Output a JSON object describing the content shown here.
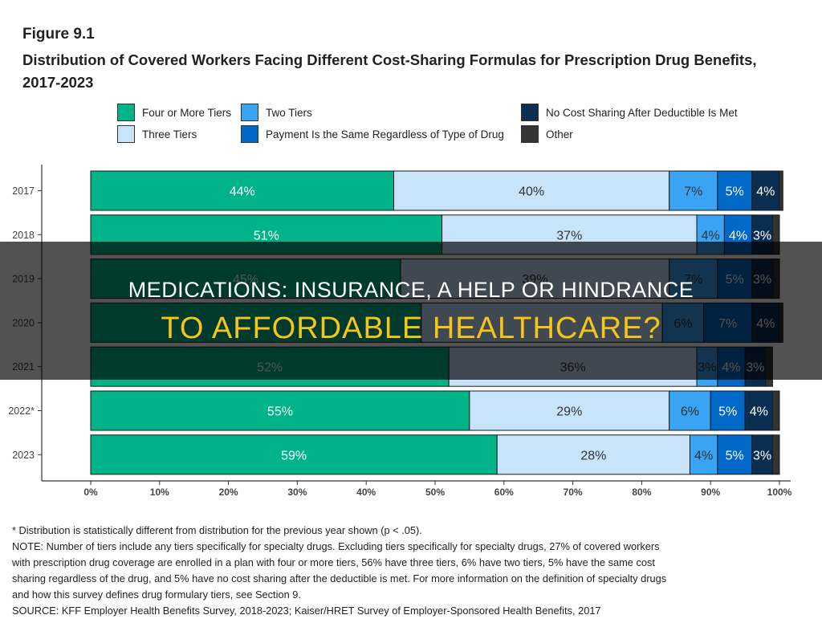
{
  "figure": {
    "number": "Figure 9.1",
    "title": "Distribution of Covered Workers Facing Different Cost-Sharing Formulas for Prescription Drug Benefits, 2017-2023"
  },
  "chart_data": {
    "type": "bar",
    "orientation": "horizontal",
    "stacked": true,
    "categories": [
      "2017",
      "2018",
      "2019",
      "2020",
      "2021",
      "2022*",
      "2023"
    ],
    "series": [
      {
        "name": "Four or More Tiers",
        "color": "#00b388",
        "label_color": "#ffffff",
        "values": [
          44,
          51,
          45,
          48,
          52,
          55,
          59
        ]
      },
      {
        "name": "Three Tiers",
        "color": "#c8e4fb",
        "label_color": "#333333",
        "values": [
          40,
          37,
          39,
          35,
          36,
          29,
          28
        ]
      },
      {
        "name": "Two Tiers",
        "color": "#39a3f4",
        "label_color": "#333333",
        "values": [
          7,
          4,
          7,
          6,
          3,
          6,
          4
        ]
      },
      {
        "name": "Payment Is the Same Regardless of Type of Drug",
        "color": "#0069c7",
        "label_color": "#ffffff",
        "values": [
          5,
          4,
          5,
          7,
          4,
          5,
          5
        ]
      },
      {
        "name": "No Cost Sharing After Deductible Is Met",
        "color": "#0a2d52",
        "label_color": "#ffffff",
        "values": [
          4,
          3,
          3,
          4,
          3,
          4,
          3
        ]
      },
      {
        "name": "Other",
        "color": "#333333",
        "label_color": "#ffffff",
        "values": [
          0.5,
          1,
          1,
          0.5,
          1,
          1,
          1
        ]
      }
    ],
    "value_labels": [
      [
        "44%",
        "40%",
        "7%",
        "5%",
        "4%",
        ""
      ],
      [
        "51%",
        "37%",
        "4%",
        "4%",
        "3%",
        ""
      ],
      [
        "45%",
        "39%",
        "7%",
        "5%",
        "3%",
        ""
      ],
      [
        "",
        "",
        "6%",
        "7%",
        "4%",
        ""
      ],
      [
        "52%",
        "36%",
        "3%",
        "4%",
        "3%",
        ""
      ],
      [
        "55%",
        "29%",
        "6%",
        "5%",
        "4%",
        ""
      ],
      [
        "59%",
        "28%",
        "4%",
        "5%",
        "3%",
        ""
      ]
    ],
    "x_ticks": [
      "0%",
      "10%",
      "20%",
      "30%",
      "40%",
      "50%",
      "60%",
      "70%",
      "80%",
      "90%",
      "100%"
    ],
    "xlim": [
      0,
      100
    ],
    "grid": false,
    "legend_position": "top"
  },
  "notes": {
    "line1": "* Distribution is statistically different from distribution for the previous year shown (p < .05).",
    "line2": "NOTE: Number of tiers include any tiers specifically for specialty drugs. Excluding tiers specifically for specialty drugs, 27% of covered workers",
    "line3": "with prescription drug coverage are enrolled in a plan with four or more tiers, 56% have three tiers, 6% have two tiers, 5% have the same cost",
    "line4": "sharing regardless of the drug, and 5% have no cost sharing after the deductible is met. For more information on the definition of specialty drugs",
    "line5": "and how this survey defines drug formulary tiers, see Section 9.",
    "line6": "SOURCE: KFF Employer Health Benefits Survey, 2018-2023; Kaiser/HRET Survey of Employer-Sponsored Health Benefits, 2017"
  },
  "banner": {
    "line1": "MEDICATIONS: INSURANCE, A HELP OR HINDRANCE",
    "line2": "TO AFFORDABLE HEALTHCARE?",
    "line2_color": "#f5c518"
  }
}
